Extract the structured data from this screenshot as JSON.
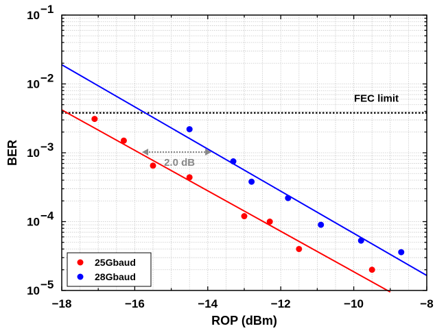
{
  "chart_data": {
    "type": "scatter",
    "xlabel": "ROP (dBm)",
    "ylabel": "BER",
    "xlim": [
      -18,
      -8
    ],
    "ylim": [
      1e-05,
      0.1
    ],
    "yscale": "log",
    "grid": true,
    "legend_position": "bottom-left",
    "x_ticks": [
      -18,
      -16,
      -14,
      -12,
      -10,
      -8
    ],
    "x_tick_labels": [
      "−18",
      "−16",
      "−14",
      "−12",
      "−10",
      "−8"
    ],
    "y_ticks": [
      {
        "value": 1e-05,
        "base": "10",
        "exp": "−5"
      },
      {
        "value": 0.0001,
        "base": "10",
        "exp": "−4"
      },
      {
        "value": 0.001,
        "base": "10",
        "exp": "−3"
      },
      {
        "value": 0.01,
        "base": "10",
        "exp": "−2"
      },
      {
        "value": 0.1,
        "base": "10",
        "exp": "−1"
      }
    ],
    "series": [
      {
        "name": "25Gbaud",
        "color": "#ff0000",
        "points": [
          {
            "x": -17.1,
            "y": 0.0031
          },
          {
            "x": -16.3,
            "y": 0.0015
          },
          {
            "x": -15.5,
            "y": 0.00065
          },
          {
            "x": -14.5,
            "y": 0.00044
          },
          {
            "x": -13.0,
            "y": 0.00012
          },
          {
            "x": -12.3,
            "y": 0.0001
          },
          {
            "x": -11.5,
            "y": 4e-05
          },
          {
            "x": -9.5,
            "y": 2e-05
          }
        ],
        "fit": [
          {
            "x": -18,
            "y": 0.0042
          },
          {
            "x": -9.0,
            "y": 9.5e-06
          }
        ]
      },
      {
        "name": "28Gbaud",
        "color": "#0000ff",
        "points": [
          {
            "x": -14.5,
            "y": 0.0022
          },
          {
            "x": -13.3,
            "y": 0.00075
          },
          {
            "x": -12.8,
            "y": 0.00038
          },
          {
            "x": -11.8,
            "y": 0.00022
          },
          {
            "x": -10.9,
            "y": 9e-05
          },
          {
            "x": -9.8,
            "y": 5.3e-05
          },
          {
            "x": -8.7,
            "y": 3.6e-05
          }
        ],
        "fit": [
          {
            "x": -18,
            "y": 0.019
          },
          {
            "x": -8,
            "y": 1.65e-05
          }
        ]
      }
    ],
    "fec_limit": {
      "label": "FEC limit",
      "y": 0.0038
    },
    "annotation": {
      "label": "2.0 dB",
      "x_start": -15.8,
      "x_end": -13.9,
      "y": 0.001
    }
  }
}
